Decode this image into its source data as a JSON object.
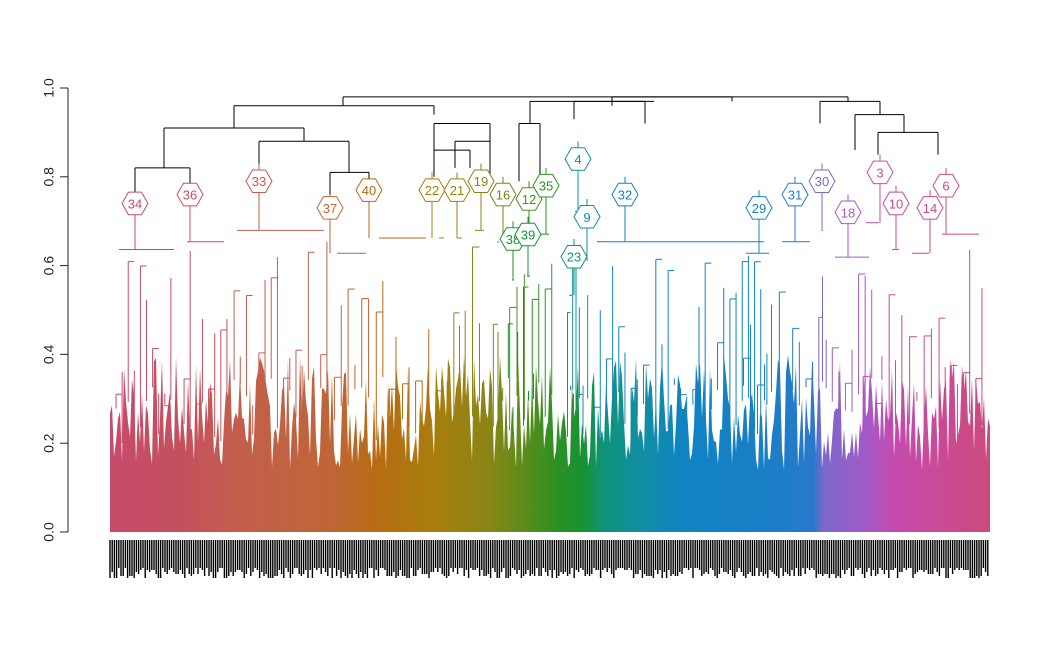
{
  "chart_data": {
    "type": "dendrogram",
    "title": "",
    "xlabel": "",
    "ylabel": "",
    "ylim": [
      0,
      1.0
    ],
    "y_ticks": [
      "0.0",
      "0.2",
      "0.4",
      "0.6",
      "0.8",
      "1.0"
    ],
    "y_tick_values": [
      0,
      0.2,
      0.4,
      0.6,
      0.8,
      1.0
    ],
    "leaf_labels_readable": false,
    "root_height": 0.98,
    "top_merges": [
      {
        "height": 0.98,
        "joins": [
          "left group (clusters 34,36,33,37,40)",
          "right group"
        ]
      },
      {
        "height": 0.96,
        "joins": [
          "middle group",
          "right group"
        ]
      },
      {
        "height": 0.96,
        "joins": [
          "clusters 32,29,31 region",
          "clusters 30,18,3,10,14,6 region"
        ]
      },
      {
        "height": 0.96,
        "joins": [
          "clusters 23,4,9 region",
          "clusters 32,29,31 region"
        ]
      },
      {
        "height": 0.96,
        "joins": [
          "clusters 30..",
          "clusters 3,10,14,6.."
        ]
      },
      {
        "height": 0.95,
        "joins": [
          "clusters 22,21,19,16",
          "clusters 12,35,38,39"
        ]
      },
      {
        "height": 0.91,
        "joins": [
          "cluster 34",
          "cluster 36"
        ]
      },
      {
        "height": 0.9,
        "joins": [
          "cluster 33",
          "clusters 37,40"
        ]
      },
      {
        "height": 0.93,
        "joins": [
          "left pair",
          "right pair"
        ]
      }
    ],
    "clusters": [
      {
        "label": "34",
        "height": 0.74,
        "color": "#c64b6b"
      },
      {
        "label": "36",
        "height": 0.76,
        "color": "#c4505e"
      },
      {
        "label": "33",
        "height": 0.79,
        "color": "#c35e4e"
      },
      {
        "label": "37",
        "height": 0.73,
        "color": "#bf6538"
      },
      {
        "label": "40",
        "height": 0.77,
        "color": "#b96b14"
      },
      {
        "label": "22",
        "height": 0.77,
        "color": "#a77e0d"
      },
      {
        "label": "21",
        "height": 0.77,
        "color": "#9a8210"
      },
      {
        "label": "19",
        "height": 0.79,
        "color": "#8a8516"
      },
      {
        "label": "16",
        "height": 0.76,
        "color": "#6c8a1a"
      },
      {
        "label": "12",
        "height": 0.75,
        "color": "#4d8e1e"
      },
      {
        "label": "35",
        "height": 0.78,
        "color": "#2a9124"
      },
      {
        "label": "38",
        "height": 0.66,
        "color": "#1e9229"
      },
      {
        "label": "39",
        "height": 0.67,
        "color": "#159337"
      },
      {
        "label": "23",
        "height": 0.62,
        "color": "#0f9278"
      },
      {
        "label": "4",
        "height": 0.84,
        "color": "#1090a0"
      },
      {
        "label": "9",
        "height": 0.71,
        "color": "#1189b8"
      },
      {
        "label": "32",
        "height": 0.76,
        "color": "#1083c2"
      },
      {
        "label": "29",
        "height": 0.73,
        "color": "#1a7fc6"
      },
      {
        "label": "31",
        "height": 0.76,
        "color": "#2a78cc"
      },
      {
        "label": "30",
        "height": 0.79,
        "color": "#7a68cc"
      },
      {
        "label": "18",
        "height": 0.72,
        "color": "#a35ac6"
      },
      {
        "label": "3",
        "height": 0.81,
        "color": "#c44bae"
      },
      {
        "label": "10",
        "height": 0.74,
        "color": "#c84a9c"
      },
      {
        "label": "14",
        "height": 0.73,
        "color": "#c94a8a"
      },
      {
        "label": "6",
        "height": 0.78,
        "color": "#cb4b7a"
      }
    ],
    "colors": {
      "background": "#ffffff",
      "axis": "#222222",
      "top_links": "#000000"
    },
    "x_leaf_labels": "dense unreadable black labels"
  }
}
